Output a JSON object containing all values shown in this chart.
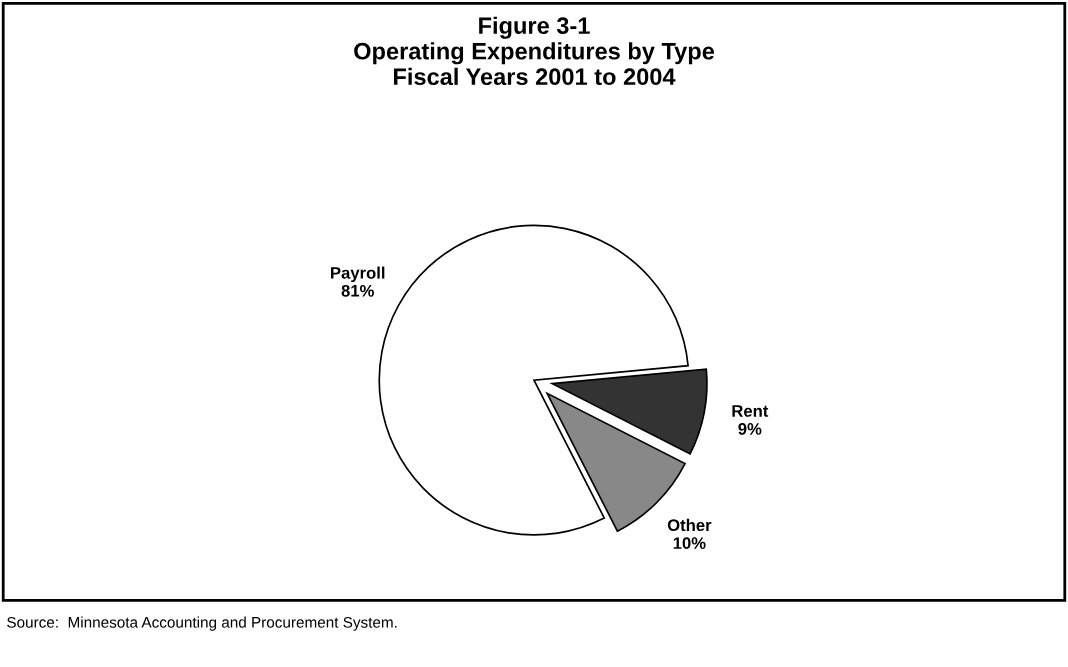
{
  "chart_data": {
    "type": "pie",
    "title": "Figure 3-1\nOperating Expenditures by Type\nFiscal Years 2001 to 2004",
    "categories": [
      "Payroll",
      "Rent",
      "Other"
    ],
    "values": [
      81,
      9,
      10
    ],
    "value_labels": [
      "81%",
      "9%",
      "10%"
    ],
    "colors": [
      "#ffffff",
      "#333333",
      "#888888"
    ],
    "annotations": [
      "Source:  Minnesota Accounting and Procurement System."
    ]
  }
}
